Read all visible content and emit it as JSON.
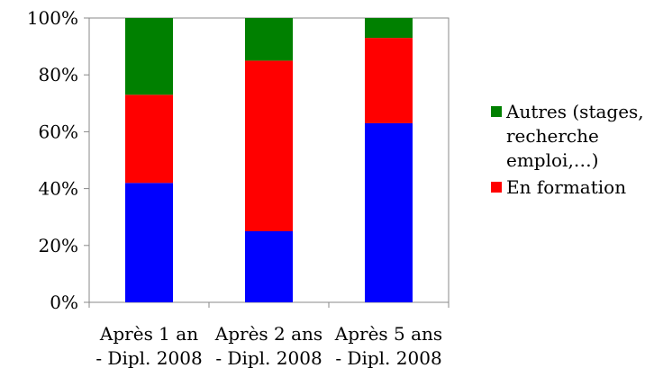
{
  "chart_data": {
    "type": "bar",
    "stacked": true,
    "normalized": true,
    "categories": [
      [
        "Après 1 an",
        "- Dipl. 2008"
      ],
      [
        "Après 2 ans",
        "- Dipl. 2008"
      ],
      [
        "Après 5 ans",
        "- Dipl. 2008"
      ]
    ],
    "series": [
      {
        "name": "",
        "color": "#0000ff",
        "values": [
          42,
          25,
          63
        ]
      },
      {
        "name": "En formation",
        "color": "#ff0000",
        "values": [
          31,
          60,
          30
        ]
      },
      {
        "name": "Autres (stages, recherche emploi,...)",
        "color": "#008000",
        "values": [
          27,
          15,
          7
        ]
      }
    ],
    "ylim": [
      0,
      100
    ],
    "yticks": [
      "0%",
      "20%",
      "40%",
      "60%",
      "80%",
      "100%"
    ],
    "grid": false,
    "legend": {
      "placement": "right",
      "entries": [
        {
          "lines": [
            "Autres (stages,",
            "recherche",
            "emploi,…)"
          ],
          "color": "#008000"
        },
        {
          "lines": [
            "En formation"
          ],
          "color": "#ff0000"
        }
      ]
    },
    "title": "",
    "xlabel": "",
    "ylabel": ""
  }
}
